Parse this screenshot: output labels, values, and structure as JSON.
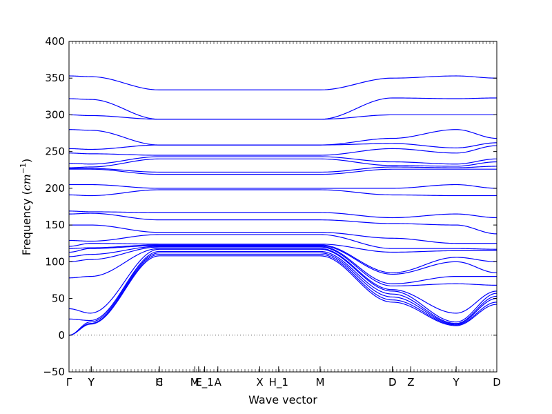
{
  "chart_data": {
    "type": "line",
    "title": "",
    "xlabel": "Wave vector",
    "ylabel_text": "Frequency (",
    "ylabel_unit": "cm",
    "ylabel_exp": "−1",
    "ylabel_close": ")",
    "ylim": [
      -50,
      400
    ],
    "yticks": [
      -50,
      0,
      50,
      100,
      150,
      200,
      250,
      300,
      350,
      400
    ],
    "ytick_labels": [
      "−50",
      "0",
      "50",
      "100",
      "150",
      "200",
      "250",
      "300",
      "350",
      "400"
    ],
    "x_special_points": [
      {
        "label": "Γ",
        "x": 0.0
      },
      {
        "label": "Y",
        "x": 0.052
      },
      {
        "label": "Y",
        "x": 0.052
      },
      {
        "label": "H",
        "x": 0.211
      },
      {
        "label": "C",
        "x": 0.211
      },
      {
        "label": "M",
        "x": 0.294
      },
      {
        "label": "E",
        "x": 0.303
      },
      {
        "label": "E_1",
        "x": 0.317
      },
      {
        "label": "A",
        "x": 0.348
      },
      {
        "label": "X",
        "x": 0.446
      },
      {
        "label": "H_1",
        "x": 0.49
      },
      {
        "label": "M",
        "x": 0.587
      },
      {
        "label": "D",
        "x": 0.756
      },
      {
        "label": "D",
        "x": 0.756
      },
      {
        "label": "Z",
        "x": 0.799
      },
      {
        "label": "Y",
        "x": 0.905
      },
      {
        "label": "D",
        "x": 1.0
      }
    ],
    "zero_line": true,
    "line_color": "#0000ff",
    "bands_approx_cm-1": [
      {
        "x": [
          0,
          0.05,
          0.211,
          0.587,
          0.756,
          0.905,
          1.0
        ],
        "y": [
          0,
          15,
          108,
          108,
          45,
          13,
          42
        ]
      },
      {
        "x": [
          0,
          0.05,
          0.211,
          0.587,
          0.756,
          0.905,
          1.0
        ],
        "y": [
          0,
          16,
          110,
          110,
          48,
          14,
          45
        ]
      },
      {
        "x": [
          0,
          0.05,
          0.211,
          0.587,
          0.756,
          0.905,
          1.0
        ],
        "y": [
          0,
          18,
          112,
          112,
          52,
          15,
          50
        ]
      },
      {
        "x": [
          0,
          0.05,
          0.211,
          0.587,
          0.756,
          0.905,
          1.0
        ],
        "y": [
          22,
          20,
          114,
          114,
          56,
          16,
          53
        ]
      },
      {
        "x": [
          0,
          0.05,
          0.211,
          0.587,
          0.756,
          0.905,
          1.0
        ],
        "y": [
          36,
          30,
          117,
          117,
          60,
          18,
          57
        ]
      },
      {
        "x": [
          0,
          0.05,
          0.211,
          0.587,
          0.756,
          0.905,
          1.0
        ],
        "y": [
          78,
          80,
          118,
          118,
          62,
          30,
          60
        ]
      },
      {
        "x": [
          0,
          0.05,
          0.211,
          0.587,
          0.756,
          0.905,
          1.0
        ],
        "y": [
          100,
          103,
          120,
          120,
          67,
          70,
          68
        ]
      },
      {
        "x": [
          0,
          0.05,
          0.211,
          0.587,
          0.756,
          0.905,
          1.0
        ],
        "y": [
          107,
          110,
          121,
          121,
          70,
          80,
          80
        ]
      },
      {
        "x": [
          0,
          0.05,
          0.211,
          0.587,
          0.756,
          0.905,
          1.0
        ],
        "y": [
          113,
          118,
          122,
          122,
          83,
          100,
          85
        ]
      },
      {
        "x": [
          0,
          0.05,
          0.211,
          0.587,
          0.756,
          0.905,
          1.0
        ],
        "y": [
          118,
          119,
          123,
          123,
          85,
          106,
          100
        ]
      },
      {
        "x": [
          0,
          0.05,
          0.211,
          0.587,
          0.756,
          0.905,
          1.0
        ],
        "y": [
          121,
          125,
          124,
          124,
          113,
          115,
          115
        ]
      },
      {
        "x": [
          0,
          0.05,
          0.211,
          0.587,
          0.756,
          0.905,
          1.0
        ],
        "y": [
          129,
          128,
          137,
          137,
          118,
          118,
          117
        ]
      },
      {
        "x": [
          0,
          0.05,
          0.211,
          0.587,
          0.756,
          0.905,
          1.0
        ],
        "y": [
          150,
          150,
          140,
          140,
          132,
          125,
          125
        ]
      },
      {
        "x": [
          0,
          0.05,
          0.211,
          0.587,
          0.756,
          0.905,
          1.0
        ],
        "y": [
          165,
          166,
          157,
          157,
          152,
          150,
          138
        ]
      },
      {
        "x": [
          0,
          0.05,
          0.211,
          0.587,
          0.756,
          0.905,
          1.0
        ],
        "y": [
          169,
          168,
          167,
          167,
          160,
          165,
          160
        ]
      },
      {
        "x": [
          0,
          0.05,
          0.211,
          0.587,
          0.756,
          0.905,
          1.0
        ],
        "y": [
          191,
          190,
          198,
          198,
          191,
          190,
          190
        ]
      },
      {
        "x": [
          0,
          0.05,
          0.211,
          0.587,
          0.756,
          0.905,
          1.0
        ],
        "y": [
          205,
          205,
          200,
          200,
          200,
          205,
          200
        ]
      },
      {
        "x": [
          0,
          0.05,
          0.211,
          0.587,
          0.756,
          0.905,
          1.0
        ],
        "y": [
          226,
          226,
          219,
          219,
          226,
          226,
          226
        ]
      },
      {
        "x": [
          0,
          0.05,
          0.211,
          0.587,
          0.756,
          0.905,
          1.0
        ],
        "y": [
          227,
          227,
          222,
          222,
          229,
          228,
          230
        ]
      },
      {
        "x": [
          0,
          0.05,
          0.211,
          0.587,
          0.756,
          0.905,
          1.0
        ],
        "y": [
          228,
          229,
          240,
          240,
          231,
          230,
          236
        ]
      },
      {
        "x": [
          0,
          0.05,
          0.211,
          0.587,
          0.756,
          0.905,
          1.0
        ],
        "y": [
          234,
          233,
          243,
          243,
          236,
          233,
          240
        ]
      },
      {
        "x": [
          0,
          0.05,
          0.211,
          0.587,
          0.756,
          0.905,
          1.0
        ],
        "y": [
          248,
          247,
          245,
          245,
          254,
          248,
          258
        ]
      },
      {
        "x": [
          0,
          0.05,
          0.211,
          0.587,
          0.756,
          0.905,
          1.0
        ],
        "y": [
          254,
          253,
          259,
          259,
          261,
          255,
          262
        ]
      },
      {
        "x": [
          0,
          0.05,
          0.211,
          0.587,
          0.756,
          0.905,
          1.0
        ],
        "y": [
          280,
          279,
          259,
          259,
          268,
          280,
          268
        ]
      },
      {
        "x": [
          0,
          0.05,
          0.211,
          0.587,
          0.756,
          0.905,
          1.0
        ],
        "y": [
          300,
          299,
          294,
          294,
          300,
          300,
          300
        ]
      },
      {
        "x": [
          0,
          0.05,
          0.211,
          0.587,
          0.756,
          0.905,
          1.0
        ],
        "y": [
          322,
          321,
          294,
          294,
          323,
          322,
          323
        ]
      },
      {
        "x": [
          0,
          0.05,
          0.211,
          0.587,
          0.756,
          0.905,
          1.0
        ],
        "y": [
          353,
          352,
          334,
          334,
          350,
          353,
          350
        ]
      }
    ]
  }
}
